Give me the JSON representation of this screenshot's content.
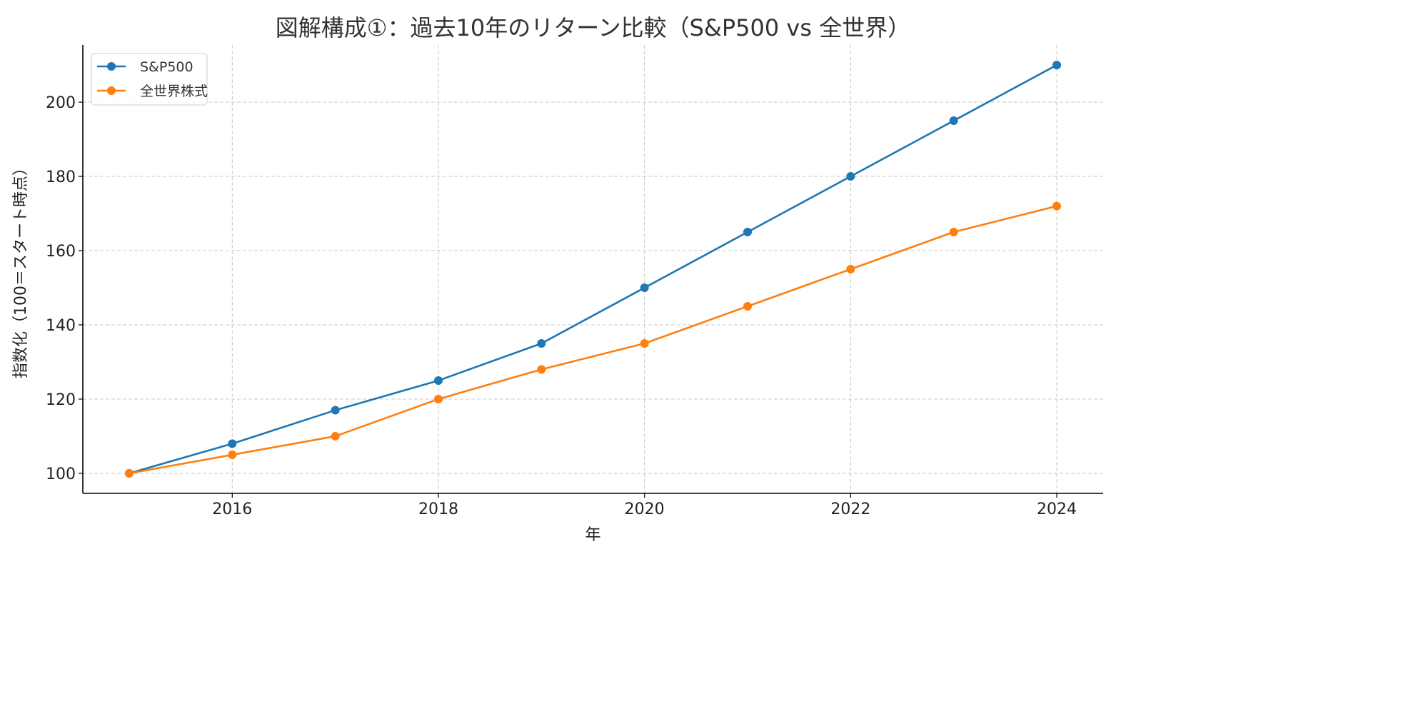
{
  "chart_data": {
    "type": "line",
    "title": "図解構成①：過去10年のリターン比較（S&P500 vs 全世界）",
    "xlabel": "年",
    "ylabel": "指数化（100＝スタート時点）",
    "x": [
      2015,
      2016,
      2017,
      2018,
      2019,
      2020,
      2021,
      2022,
      2023,
      2024
    ],
    "xlim": [
      2014.55,
      2024.45
    ],
    "ylim": [
      94.6,
      215.4
    ],
    "xticks": [
      2016,
      2018,
      2020,
      2022,
      2024
    ],
    "yticks": [
      100,
      120,
      140,
      160,
      180,
      200
    ],
    "grid": true,
    "legend_position": "top-left",
    "series": [
      {
        "name": "S&P500",
        "color": "#1f77b4",
        "values": [
          100,
          108,
          117,
          125,
          135,
          150,
          165,
          180,
          195,
          210
        ]
      },
      {
        "name": "全世界株式",
        "color": "#ff7f0e",
        "values": [
          100,
          105,
          110,
          120,
          128,
          135,
          145,
          155,
          165,
          172
        ]
      }
    ]
  }
}
